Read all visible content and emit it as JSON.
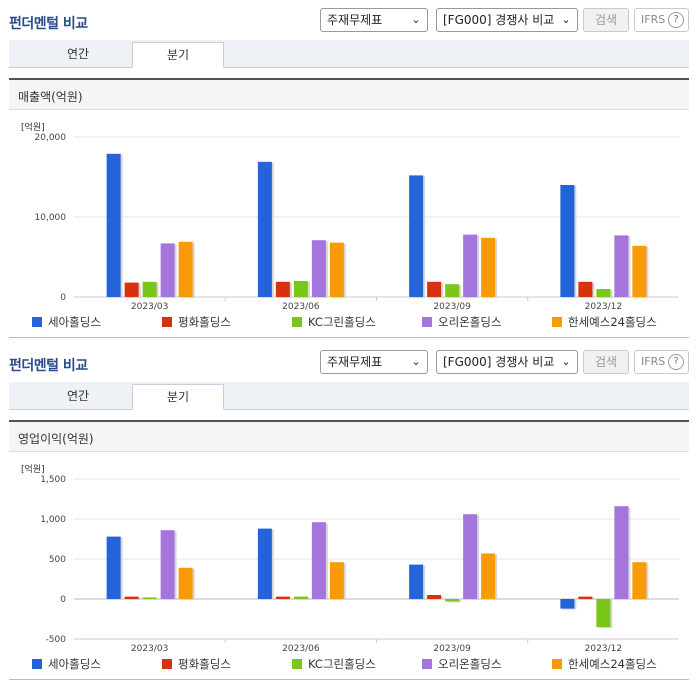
{
  "common": {
    "section_title": "펀더멘털 비교",
    "statement_select": "주재무제표",
    "compare_select": "[FG000] 경쟁사 비교",
    "search_button": "검색",
    "ifrs_button": "IFRS",
    "help_symbol": "?",
    "tabs": [
      "연간",
      "분기"
    ],
    "active_tab": "분기",
    "unit_label": "[억원]",
    "legend": [
      {
        "label": "세아홀딩스",
        "color": "#2563d8"
      },
      {
        "label": "평화홀딩스",
        "color": "#d8310d"
      },
      {
        "label": "KC그린홀딩스",
        "color": "#7ac71a"
      },
      {
        "label": "오리온홀딩스",
        "color": "#a476dc"
      },
      {
        "label": "한세예스24홀딩스",
        "color": "#f99a08"
      }
    ]
  },
  "chart_data": [
    {
      "type": "bar",
      "title": "매출액(억원)",
      "ylabel": "[억원]",
      "categories": [
        "2023/03",
        "2023/06",
        "2023/09",
        "2023/12"
      ],
      "ylim": [
        0,
        20000
      ],
      "yticks": [
        0,
        10000,
        20000
      ],
      "ytick_labels": [
        "0",
        "10,000",
        "20,000"
      ],
      "series": [
        {
          "name": "세아홀딩스",
          "values": [
            17900,
            16900,
            15200,
            14000
          ]
        },
        {
          "name": "평화홀딩스",
          "values": [
            1800,
            1900,
            1900,
            1900
          ]
        },
        {
          "name": "KC그린홀딩스",
          "values": [
            1900,
            2000,
            1600,
            1000
          ]
        },
        {
          "name": "오리온홀딩스",
          "values": [
            6700,
            7100,
            7800,
            7700
          ]
        },
        {
          "name": "한세예스24홀딩스",
          "values": [
            6900,
            6800,
            7400,
            6400
          ]
        }
      ]
    },
    {
      "type": "bar",
      "title": "영업이익(억원)",
      "ylabel": "[억원]",
      "categories": [
        "2023/03",
        "2023/06",
        "2023/09",
        "2023/12"
      ],
      "ylim": [
        -500,
        1500
      ],
      "yticks": [
        -500,
        0,
        500,
        1000,
        1500
      ],
      "ytick_labels": [
        "-500",
        "0",
        "500",
        "1,000",
        "1,500"
      ],
      "series": [
        {
          "name": "세아홀딩스",
          "values": [
            780,
            880,
            430,
            -120
          ]
        },
        {
          "name": "평화홀딩스",
          "values": [
            30,
            30,
            50,
            30
          ]
        },
        {
          "name": "KC그린홀딩스",
          "values": [
            20,
            30,
            -30,
            -350
          ]
        },
        {
          "name": "오리온홀딩스",
          "values": [
            860,
            960,
            1060,
            1160
          ]
        },
        {
          "name": "한세예스24홀딩스",
          "values": [
            390,
            460,
            570,
            460
          ]
        }
      ]
    }
  ]
}
